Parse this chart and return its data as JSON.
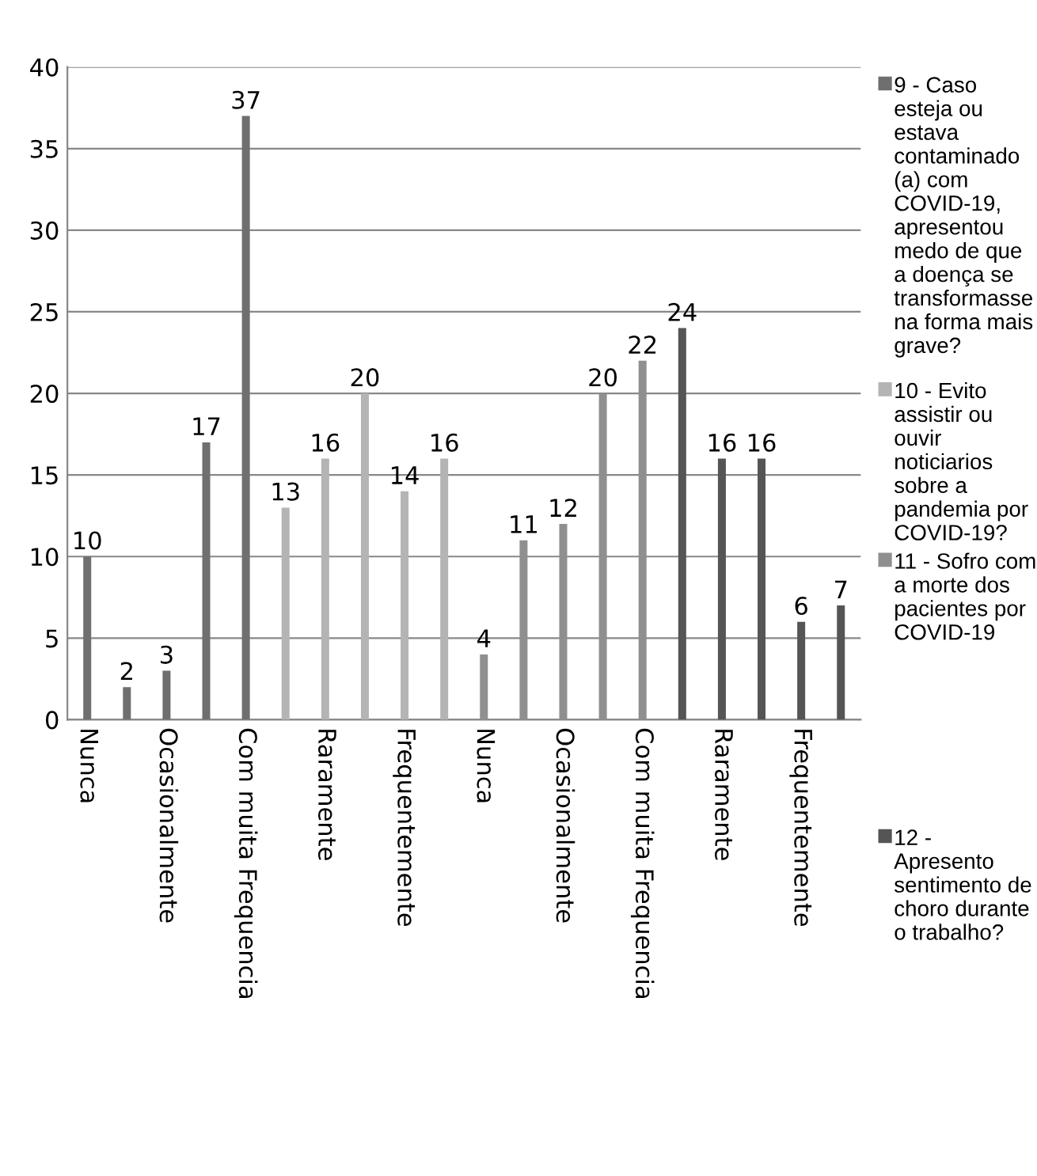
{
  "chart_data": {
    "type": "bar",
    "categories": [
      "Nunca",
      null,
      "Ocasionalmente",
      null,
      "Com muita Frequencia",
      null,
      "Raramente",
      null,
      "Frequentemente",
      null,
      "Nunca",
      null,
      "Ocasionalmente",
      null,
      "Com muita Frequencia",
      null,
      "Raramente",
      null,
      "Frequentemente",
      null
    ],
    "series": [
      {
        "name": "9 - Caso esteja ou estava contaminado (a) com COVID-19, apresentou medo de que a doença se transformasse na forma mais grave?",
        "color": "#6f6f6f",
        "values": [
          10,
          2,
          3,
          17,
          37,
          null,
          null,
          null,
          null,
          null,
          null,
          null,
          null,
          null,
          null,
          null,
          null,
          null,
          null,
          null
        ]
      },
      {
        "name": "10 - Evito assistir ou ouvir noticiarios sobre a pandemia por COVID-19?",
        "color": "#b4b4b4",
        "values": [
          null,
          null,
          null,
          null,
          null,
          13,
          16,
          20,
          14,
          16,
          null,
          null,
          null,
          null,
          null,
          null,
          null,
          null,
          null,
          null
        ]
      },
      {
        "name": "11 - Sofro com a morte dos pacientes por COVID-19",
        "color": "#8f8f8f",
        "values": [
          null,
          null,
          null,
          null,
          null,
          null,
          null,
          null,
          null,
          null,
          4,
          11,
          12,
          20,
          22,
          null,
          null,
          null,
          null,
          null
        ]
      },
      {
        "name": "12 - Apresento sentimento de choro durante o trabalho?",
        "color": "#555555",
        "values": [
          null,
          null,
          null,
          null,
          null,
          null,
          null,
          null,
          null,
          null,
          null,
          null,
          null,
          null,
          null,
          24,
          16,
          16,
          6,
          7
        ]
      }
    ],
    "ylim": [
      0,
      40
    ],
    "yticks": [
      0,
      5,
      10,
      15,
      20,
      25,
      30,
      35,
      40
    ],
    "grid": "y",
    "legend": "right",
    "data_labels": true
  }
}
